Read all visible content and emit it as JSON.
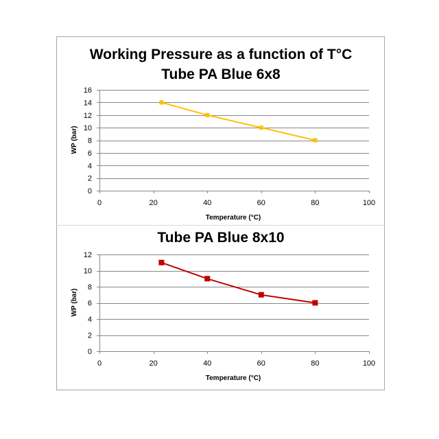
{
  "chart_data": [
    {
      "type": "line",
      "title": "Working Pressure as a function of T°C",
      "subtitle": "Tube PA Blue 6x8",
      "xlabel": "Temperature (°C)",
      "ylabel": "WP (bar)",
      "xlim": [
        0,
        100
      ],
      "ylim": [
        0,
        16
      ],
      "x_ticks": [
        0,
        20,
        40,
        60,
        80,
        100
      ],
      "y_ticks": [
        0,
        2,
        4,
        6,
        8,
        10,
        12,
        14,
        16
      ],
      "grid": true,
      "series": [
        {
          "x": [
            23,
            40,
            60,
            80
          ],
          "values": [
            14,
            12,
            10,
            8
          ],
          "color": "#ffc000",
          "marker": "square"
        }
      ]
    },
    {
      "type": "line",
      "title": "Tube PA Blue 8x10",
      "xlabel": "Temperature (°C)",
      "ylabel": "WP (bar)",
      "xlim": [
        0,
        100
      ],
      "ylim": [
        0,
        12
      ],
      "x_ticks": [
        0,
        20,
        40,
        60,
        80,
        100
      ],
      "y_ticks": [
        0,
        2,
        4,
        6,
        8,
        10,
        12
      ],
      "grid": true,
      "series": [
        {
          "x": [
            23,
            40,
            60,
            80
          ],
          "values": [
            11,
            9,
            7,
            6
          ],
          "color": "#c00000",
          "marker": "square"
        }
      ]
    }
  ]
}
